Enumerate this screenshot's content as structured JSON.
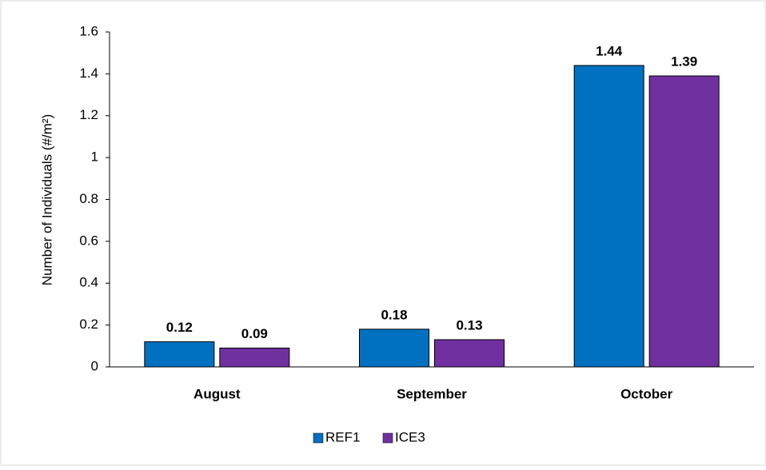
{
  "chart_data": {
    "type": "bar",
    "ylabel": "Number of Individuals (#/m²)",
    "categories": [
      "August",
      "September",
      "October"
    ],
    "series": [
      {
        "name": "REF1",
        "color": "#0070c0",
        "values": [
          0.12,
          0.18,
          1.44
        ]
      },
      {
        "name": "ICE3",
        "color": "#7030a0",
        "values": [
          0.09,
          0.13,
          1.39
        ]
      }
    ],
    "ylim": [
      0,
      1.6
    ],
    "yticks": [
      0,
      0.2,
      0.4,
      0.6,
      0.8,
      1,
      1.2,
      1.4,
      1.6
    ],
    "grid": false,
    "legend": "bottom"
  }
}
